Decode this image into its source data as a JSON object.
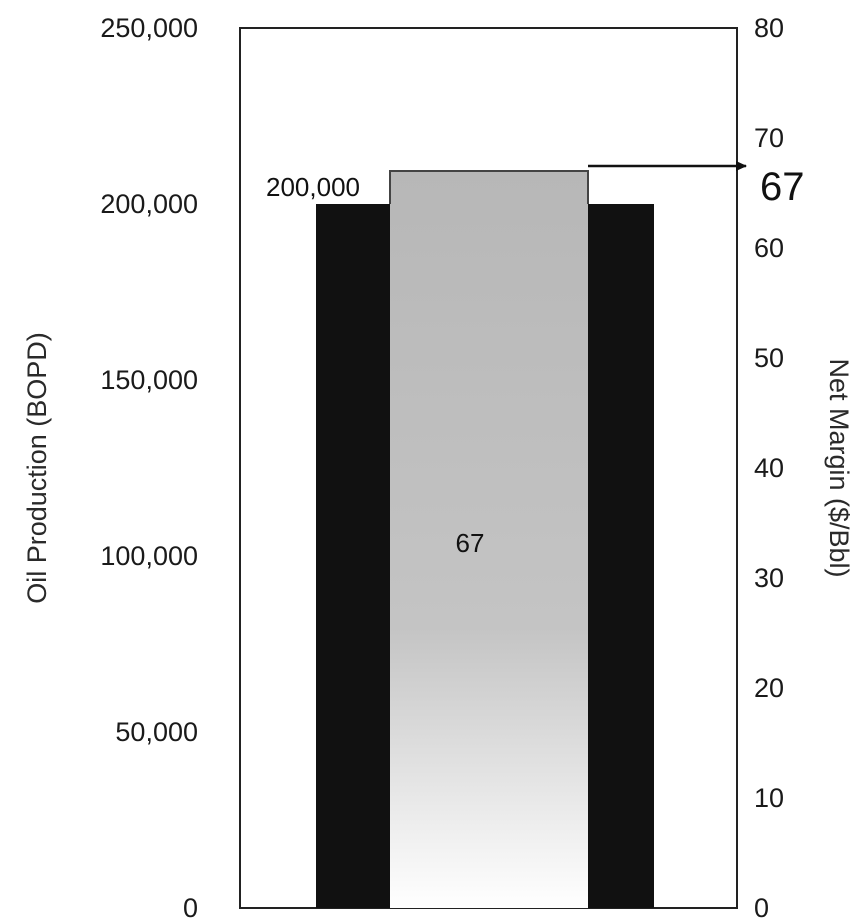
{
  "chart_data": {
    "type": "bar",
    "y_left": {
      "label": "Oil Production (BOPD)",
      "min": 0,
      "max": 250000,
      "ticks": [
        "0",
        "50,000",
        "100,000",
        "150,000",
        "200,000",
        "250,000"
      ]
    },
    "y_right": {
      "label": "Net Margin ($/Bbl)",
      "min": 0,
      "max": 80,
      "ticks": [
        "0",
        "10",
        "20",
        "30",
        "40",
        "50",
        "60",
        "70",
        "80"
      ]
    },
    "series": [
      {
        "axis": "left",
        "values": [
          200000,
          200000
        ],
        "color": "#111111"
      },
      {
        "axis": "right",
        "values": [
          67
        ],
        "color": "#bdbdbd"
      }
    ],
    "labels": {
      "production": "200,000",
      "margin_inside": "67",
      "margin_callout": "67"
    },
    "grid": false,
    "legend": "none"
  }
}
